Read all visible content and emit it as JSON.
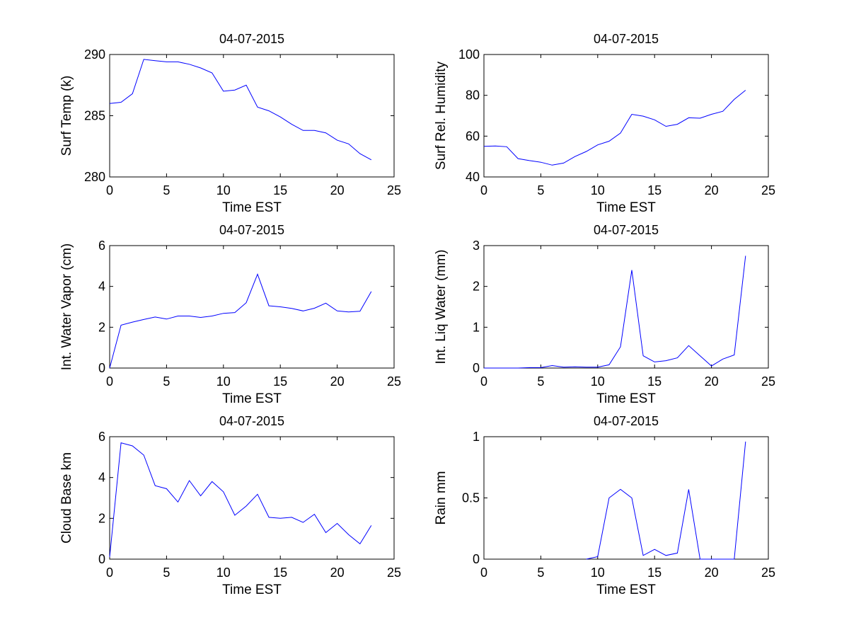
{
  "figure": {
    "line_color": "#0000ff",
    "axes_color": "#000000"
  },
  "chart_data": [
    {
      "type": "line",
      "title": "04-07-2015",
      "xlabel": "Time EST",
      "ylabel": "Surf Temp (k)",
      "xlim": [
        0,
        25
      ],
      "ylim": [
        280,
        290
      ],
      "xticks": [
        0,
        5,
        10,
        15,
        20,
        25
      ],
      "yticks": [
        280,
        285,
        290
      ],
      "x": [
        0,
        1,
        2,
        3,
        4,
        5,
        6,
        7,
        8,
        9,
        10,
        11,
        12,
        13,
        14,
        15,
        16,
        17,
        18,
        19,
        20,
        21,
        22,
        23
      ],
      "y": [
        286.0,
        286.1,
        286.8,
        289.6,
        289.5,
        289.4,
        289.4,
        289.2,
        288.9,
        288.5,
        287.0,
        287.1,
        287.5,
        285.7,
        285.4,
        284.9,
        284.3,
        283.8,
        283.8,
        283.6,
        283.0,
        282.7,
        281.9,
        281.4
      ]
    },
    {
      "type": "line",
      "title": "04-07-2015",
      "xlabel": "Time EST",
      "ylabel": "Surf Rel. Humidity",
      "xlim": [
        0,
        25
      ],
      "ylim": [
        40,
        100
      ],
      "xticks": [
        0,
        5,
        10,
        15,
        20,
        25
      ],
      "yticks": [
        40,
        60,
        80,
        100
      ],
      "x": [
        0,
        1,
        2,
        3,
        4,
        5,
        6,
        7,
        8,
        9,
        10,
        11,
        12,
        13,
        14,
        15,
        16,
        17,
        18,
        19,
        20,
        21,
        22,
        23
      ],
      "y": [
        55.0,
        55.2,
        54.8,
        49.0,
        48.0,
        47.2,
        45.8,
        46.8,
        50.0,
        52.5,
        55.7,
        57.5,
        61.5,
        70.7,
        69.8,
        68.0,
        64.8,
        65.8,
        69.0,
        68.8,
        70.7,
        72.2,
        78.0,
        82.5
      ]
    },
    {
      "type": "line",
      "title": "04-07-2015",
      "xlabel": "Time EST",
      "ylabel": "Int. Water Vapor (cm)",
      "xlim": [
        0,
        25
      ],
      "ylim": [
        0,
        6
      ],
      "xticks": [
        0,
        5,
        10,
        15,
        20,
        25
      ],
      "yticks": [
        0,
        2,
        4,
        6
      ],
      "x": [
        0,
        1,
        2,
        3,
        4,
        5,
        6,
        7,
        8,
        9,
        10,
        11,
        12,
        13,
        14,
        15,
        16,
        17,
        18,
        19,
        20,
        21,
        22,
        23
      ],
      "y": [
        0.0,
        2.1,
        2.25,
        2.38,
        2.5,
        2.4,
        2.55,
        2.55,
        2.48,
        2.55,
        2.68,
        2.72,
        3.2,
        4.6,
        3.05,
        3.0,
        2.92,
        2.8,
        2.93,
        3.18,
        2.8,
        2.75,
        2.78,
        3.75
      ]
    },
    {
      "type": "line",
      "title": "04-07-2015",
      "xlabel": "Time EST",
      "ylabel": "Int. Liq Water (mm)",
      "xlim": [
        0,
        25
      ],
      "ylim": [
        0,
        3
      ],
      "xticks": [
        0,
        5,
        10,
        15,
        20,
        25
      ],
      "yticks": [
        0,
        1,
        2,
        3
      ],
      "x": [
        0,
        1,
        2,
        3,
        4,
        5,
        6,
        7,
        8,
        9,
        10,
        11,
        12,
        13,
        14,
        15,
        16,
        17,
        18,
        19,
        20,
        21,
        22,
        23
      ],
      "y": [
        0.0,
        0.0,
        0.0,
        0.0,
        0.01,
        0.01,
        0.06,
        0.02,
        0.03,
        0.02,
        0.02,
        0.08,
        0.52,
        2.4,
        0.3,
        0.15,
        0.18,
        0.25,
        0.55,
        0.3,
        0.05,
        0.22,
        0.32,
        2.75
      ]
    },
    {
      "type": "line",
      "title": "04-07-2015",
      "xlabel": "Time EST",
      "ylabel": "Cloud Base km",
      "xlim": [
        0,
        25
      ],
      "ylim": [
        0,
        6
      ],
      "xticks": [
        0,
        5,
        10,
        15,
        20,
        25
      ],
      "yticks": [
        0,
        2,
        4,
        6
      ],
      "x": [
        0,
        1,
        2,
        3,
        4,
        5,
        6,
        7,
        8,
        9,
        10,
        11,
        12,
        13,
        14,
        15,
        16,
        17,
        18,
        19,
        20,
        21,
        22,
        23
      ],
      "y": [
        0.1,
        5.7,
        5.55,
        5.1,
        3.6,
        3.45,
        2.8,
        3.85,
        3.1,
        3.8,
        3.3,
        2.15,
        2.6,
        3.18,
        2.05,
        2.0,
        2.05,
        1.8,
        2.2,
        1.3,
        1.75,
        1.2,
        0.75,
        1.65
      ]
    },
    {
      "type": "line",
      "title": "04-07-2015",
      "xlabel": "Time EST",
      "ylabel": "Rain mm",
      "xlim": [
        0,
        25
      ],
      "ylim": [
        0,
        1
      ],
      "xticks": [
        0,
        5,
        10,
        15,
        20,
        25
      ],
      "yticks": [
        0,
        0.5,
        1
      ],
      "x": [
        9,
        10,
        11,
        12,
        13,
        14,
        15,
        16,
        17,
        18,
        19,
        22,
        23
      ],
      "y": [
        0.0,
        0.02,
        0.5,
        0.57,
        0.5,
        0.03,
        0.08,
        0.03,
        0.05,
        0.57,
        0.0,
        0.0,
        0.96
      ]
    }
  ]
}
